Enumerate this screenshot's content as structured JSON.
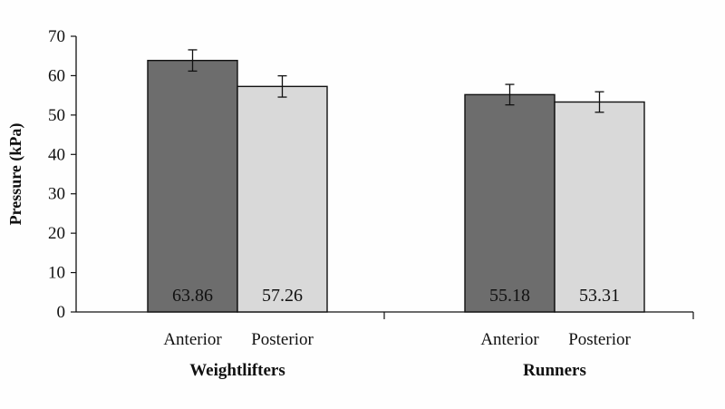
{
  "chart_data": {
    "type": "bar",
    "ylabel": "Pressure (kPa)",
    "ylim": [
      0,
      70
    ],
    "yticks": [
      "0",
      "10",
      "20",
      "30",
      "40",
      "50",
      "60",
      "70"
    ],
    "groups": [
      {
        "name": "Weightlifters",
        "bars": [
          {
            "label": "Anterior",
            "value": 63.86,
            "value_text": "63.86",
            "error": 2.7,
            "color": "#6d6d6d"
          },
          {
            "label": "Posterior",
            "value": 57.26,
            "value_text": "57.26",
            "error": 2.7,
            "color": "#d9d9d9"
          }
        ]
      },
      {
        "name": "Runners",
        "bars": [
          {
            "label": "Anterior",
            "value": 55.18,
            "value_text": "55.18",
            "error": 2.6,
            "color": "#6d6d6d"
          },
          {
            "label": "Posterior",
            "value": 53.31,
            "value_text": "53.31",
            "error": 2.6,
            "color": "#d9d9d9"
          }
        ]
      }
    ],
    "grid": false,
    "legend": "none"
  }
}
